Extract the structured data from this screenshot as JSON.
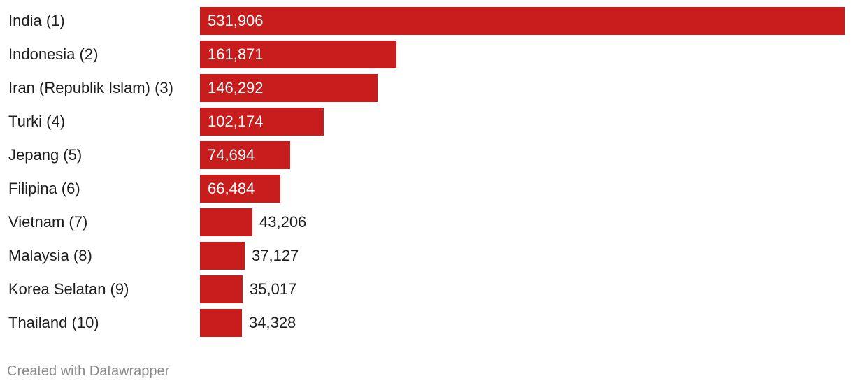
{
  "chart_data": {
    "type": "bar",
    "orientation": "horizontal",
    "categories": [
      "India (1)",
      "Indonesia (2)",
      "Iran (Republik Islam) (3)",
      "Turki (4)",
      "Jepang (5)",
      "Filipina (6)",
      "Vietnam (7)",
      "Malaysia (8)",
      "Korea Selatan (9)",
      "Thailand (10)"
    ],
    "values": [
      531906,
      161871,
      146292,
      102174,
      74694,
      66484,
      43206,
      37127,
      35017,
      34328
    ],
    "value_labels": [
      "531,906",
      "161,871",
      "146,292",
      "102,174",
      "74,694",
      "66,484",
      "43,206",
      "37,127",
      "35,017",
      "34,328"
    ],
    "xlim": [
      0,
      531906
    ],
    "grid": false,
    "legend": "none",
    "bar_color": "#c71e1d"
  },
  "footer": {
    "credit": "Created with Datawrapper"
  }
}
